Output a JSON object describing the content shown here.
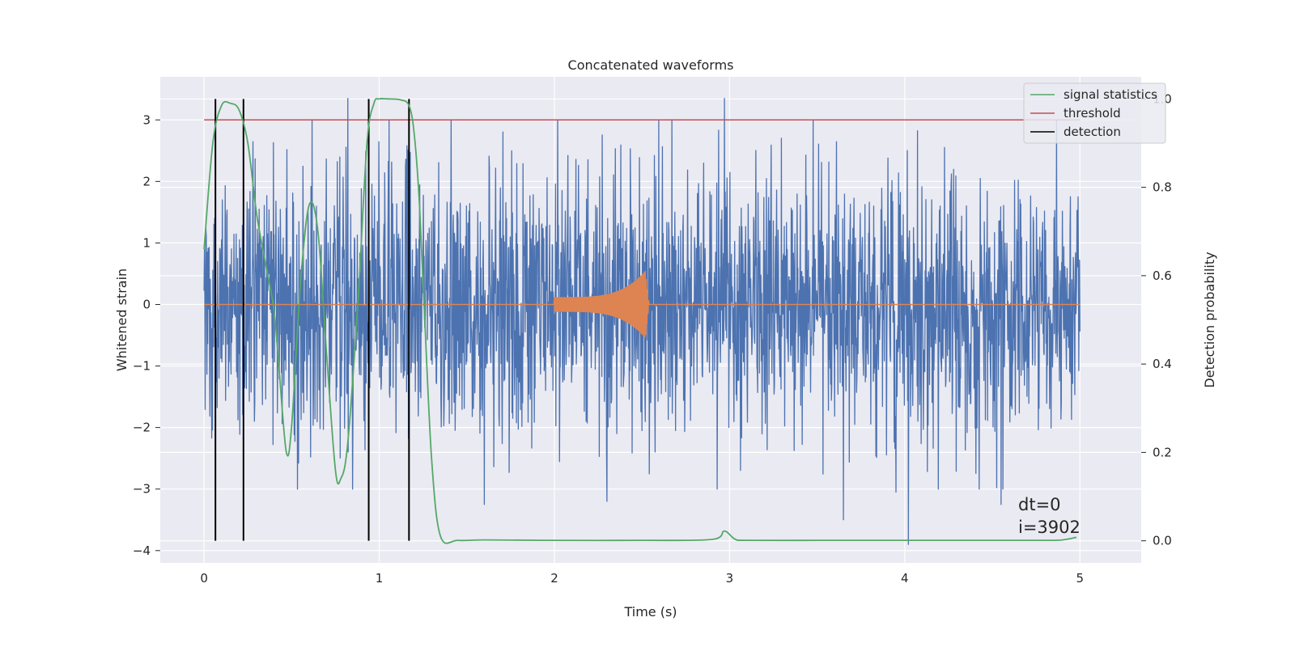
{
  "chart_data": {
    "type": "line",
    "title": "Concatenated waveforms",
    "xlabel": "Time (s)",
    "ylabel": "Whitened strain",
    "y2label": "Detection probability",
    "xlim": [
      -0.25,
      5.35
    ],
    "ylim": [
      -4.2,
      3.7
    ],
    "y2lim": [
      -0.05,
      1.05
    ],
    "x_ticks": [
      0,
      1,
      2,
      3,
      4,
      5
    ],
    "y_ticks": [
      -4,
      -3,
      -2,
      -1,
      0,
      1,
      2,
      3
    ],
    "y2_ticks": [
      0.0,
      0.2,
      0.4,
      0.6,
      0.8,
      1.0
    ],
    "x_tick_labels": [
      "0",
      "1",
      "2",
      "3",
      "4",
      "5"
    ],
    "y_tick_labels": [
      "−4",
      "−3",
      "−2",
      "−1",
      "0",
      "1",
      "2",
      "3"
    ],
    "y2_tick_labels": [
      "0.0",
      "0.2",
      "0.4",
      "0.6",
      "0.8",
      "1.0"
    ],
    "grid": true,
    "legend_placement": "top-right",
    "annotations": [
      "dt=0",
      "i=3902"
    ],
    "series": [
      {
        "kind": "noise",
        "axis": "left",
        "color": "#4c72b0",
        "x_range": [
          0,
          5
        ],
        "typical_amplitude": 1.1,
        "peak_values": [
          {
            "x": 0.82,
            "y": 3.35
          },
          {
            "x": 2.97,
            "y": 3.35
          },
          {
            "x": 4.02,
            "y": -3.9
          },
          {
            "x": 4.55,
            "y": -3.25
          },
          {
            "x": 3.65,
            "y": -3.5
          },
          {
            "x": 3.95,
            "y": -3.05
          },
          {
            "x": 2.3,
            "y": -3.2
          },
          {
            "x": 1.6,
            "y": -3.25
          }
        ]
      },
      {
        "kind": "injected-waveform",
        "axis": "left",
        "color": "#dd8452",
        "x_range": [
          0,
          5
        ],
        "chirp_start": 2.0,
        "merger": 2.52,
        "start_amplitude": 0.12,
        "peak_amplitude": 0.55
      },
      {
        "name": "signal statistics",
        "axis": "right",
        "color": "#55a868",
        "x": [
          0.0,
          0.05,
          0.1,
          0.15,
          0.2,
          0.25,
          0.3,
          0.35,
          0.4,
          0.43,
          0.47,
          0.5,
          0.55,
          0.6,
          0.65,
          0.7,
          0.75,
          0.78,
          0.82,
          0.88,
          0.93,
          0.97,
          1.0,
          1.05,
          1.12,
          1.17,
          1.2,
          1.23,
          1.26,
          1.3,
          1.35,
          1.45,
          1.6,
          2.0,
          2.5,
          2.9,
          2.97,
          3.03,
          3.1,
          3.5,
          4.0,
          4.5,
          4.8,
          4.9,
          4.98
        ],
        "y": [
          0.66,
          0.9,
          0.985,
          0.99,
          0.975,
          0.9,
          0.74,
          0.63,
          0.52,
          0.38,
          0.2,
          0.26,
          0.58,
          0.76,
          0.7,
          0.42,
          0.16,
          0.14,
          0.22,
          0.55,
          0.9,
          0.99,
          1.0,
          1.0,
          0.998,
          0.985,
          0.92,
          0.76,
          0.5,
          0.18,
          0.01,
          0.001,
          0.002,
          0.001,
          0.001,
          0.003,
          0.022,
          0.004,
          0.001,
          0.001,
          0.001,
          0.001,
          0.001,
          0.002,
          0.008
        ]
      },
      {
        "name": "threshold",
        "axis": "left",
        "color": "#c44e52",
        "x": [
          0,
          5
        ],
        "y": [
          3,
          3
        ]
      },
      {
        "name": "detection",
        "axis": "right",
        "color": "#000000",
        "x_positions": [
          0.065,
          0.225,
          0.94,
          1.17
        ],
        "y_range": [
          0,
          1
        ]
      }
    ]
  }
}
